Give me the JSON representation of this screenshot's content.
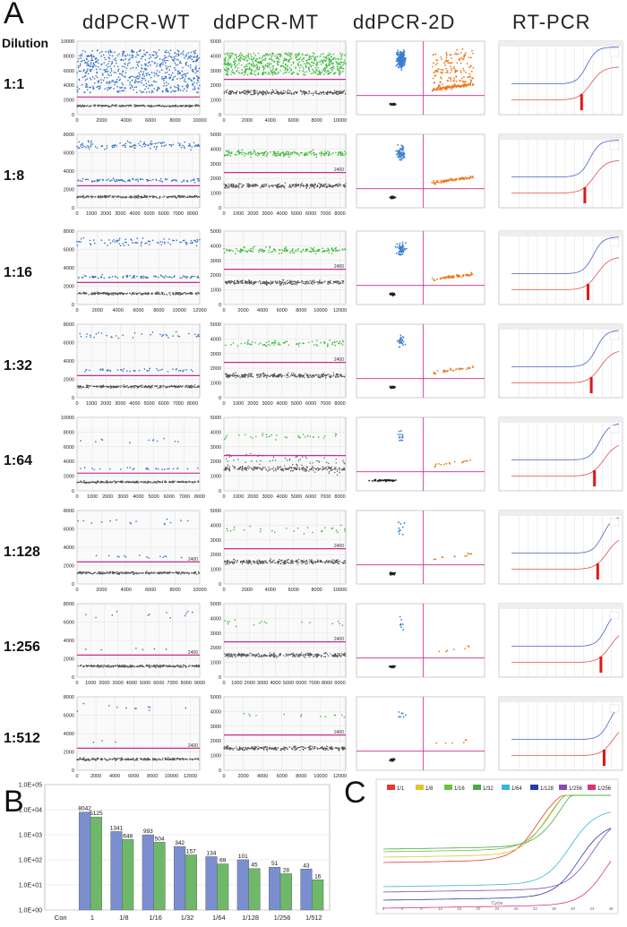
{
  "panel_a": {
    "letter": "A",
    "dilution_header": "Dilution",
    "column_titles": [
      "ddPCR-WT",
      "ddPCR-MT",
      "ddPCR-2D",
      "RT-PCR"
    ],
    "rows": [
      {
        "dilution": "1:1",
        "wt_xmax": 10000,
        "wt_ymax": 10000,
        "wt_yticks": [
          0,
          2000,
          4000,
          6000,
          8000,
          10000
        ],
        "wt_xticks": [
          0,
          2000,
          4000,
          6000,
          8000,
          10000
        ],
        "mt_xticks": [
          0,
          2000,
          4000,
          6000,
          8000,
          10000
        ],
        "mt_thresh_label": "",
        "wt_thresh_label": ""
      },
      {
        "dilution": "1:8",
        "wt_xmax": 8500,
        "wt_ymax": 8000,
        "wt_yticks": [
          0,
          2000,
          4000,
          6000,
          8000
        ],
        "wt_xticks": [
          0,
          1000,
          2000,
          3000,
          4000,
          5000,
          6000,
          7000,
          8000
        ],
        "mt_xticks": [
          0,
          1000,
          2000,
          3000,
          4000,
          5000,
          6000,
          7000,
          8000
        ],
        "mt_thresh_label": "2400",
        "wt_thresh_label": ""
      },
      {
        "dilution": "1:16",
        "wt_xmax": 12000,
        "wt_ymax": 8000,
        "wt_yticks": [
          0,
          2000,
          4000,
          6000,
          8000
        ],
        "wt_xticks": [
          0,
          2000,
          4000,
          6000,
          8000,
          10000,
          12000
        ],
        "mt_xticks": [
          0,
          2000,
          4000,
          6000,
          8000,
          10000,
          12000
        ],
        "mt_thresh_label": "2400",
        "wt_thresh_label": ""
      },
      {
        "dilution": "1:32",
        "wt_xmax": 8500,
        "wt_ymax": 8000,
        "wt_yticks": [
          0,
          2000,
          4000,
          6000,
          8000
        ],
        "wt_xticks": [
          0,
          1000,
          2000,
          3000,
          4000,
          5000,
          6000,
          7000,
          8000
        ],
        "mt_xticks": [
          0,
          1000,
          2000,
          3000,
          4000,
          5000,
          6000,
          7000,
          8000
        ],
        "mt_thresh_label": "2400",
        "wt_thresh_label": ""
      },
      {
        "dilution": "1:64",
        "wt_xmax": 8000,
        "wt_ymax": 10000,
        "wt_yticks": [
          0,
          2000,
          4000,
          6000,
          8000,
          10000
        ],
        "wt_xticks": [
          0,
          1000,
          2000,
          3000,
          4000,
          5000,
          6000,
          7000,
          8000
        ],
        "mt_xticks": [
          0,
          1000,
          2000,
          3000,
          4000,
          5000,
          6000,
          7000,
          8000
        ],
        "mt_thresh_label": "",
        "wt_thresh_label": ""
      },
      {
        "dilution": "1:128",
        "wt_xmax": 10000,
        "wt_ymax": 8000,
        "wt_yticks": [
          0,
          2000,
          4000,
          6000,
          8000
        ],
        "wt_xticks": [
          0,
          2000,
          4000,
          6000,
          8000,
          10000
        ],
        "mt_xticks": [
          0,
          2000,
          4000,
          6000,
          8000,
          10000
        ],
        "mt_thresh_label": "2400",
        "wt_thresh_label": "2400"
      },
      {
        "dilution": "1:256",
        "wt_xmax": 9000,
        "wt_ymax": 8000,
        "wt_yticks": [
          0,
          2000,
          4000,
          6000,
          8000
        ],
        "wt_xticks": [
          0,
          1000,
          2000,
          3000,
          4000,
          5000,
          6000,
          7000,
          8000,
          9000
        ],
        "mt_xticks": [
          0,
          1000,
          2000,
          3000,
          4000,
          5000,
          6000,
          7000,
          8000,
          9000
        ],
        "mt_thresh_label": "2400",
        "wt_thresh_label": "2400"
      },
      {
        "dilution": "1:512",
        "wt_xmax": 13000,
        "wt_ymax": 8000,
        "wt_yticks": [
          0,
          2000,
          4000,
          6000,
          8000
        ],
        "wt_xticks": [
          0,
          2000,
          4000,
          6000,
          8000,
          10000,
          12000
        ],
        "mt_xticks": [
          0,
          2000,
          4000,
          6000,
          8000,
          10000,
          12000
        ],
        "mt_thresh_label": "2400",
        "wt_thresh_label": "2400"
      }
    ],
    "mt_yticks": [
      0,
      1000,
      2000,
      3000,
      4000,
      5000
    ],
    "colors": {
      "wt": "#2f6fc4",
      "mt": "#3cb83c",
      "negative": "#555555",
      "threshold": "#cc2a8c",
      "orange": "#e87a20"
    }
  },
  "chart_data": [
    {
      "type": "bar",
      "title": "",
      "categories": [
        "1",
        "1/8",
        "1/16",
        "1/32",
        "1/64",
        "1/128",
        "1/256",
        "1/512"
      ],
      "series": [
        {
          "name": "ddPCR-WT",
          "color": "#7b8fd0",
          "values": [
            8042,
            1341,
            993,
            342,
            134,
            101,
            51,
            43
          ]
        },
        {
          "name": "ddPCR-MT",
          "color": "#6fb86a",
          "values": [
            5125,
            648,
            504,
            157,
            69,
            45,
            28,
            16
          ]
        }
      ],
      "extra_x_label": "Con",
      "ylabel": "",
      "yscale": "log",
      "ylim": [
        1,
        100000
      ],
      "yticks": [
        "1.0E+00",
        "1.0E+01",
        "1.0E+02",
        "1.0E+03",
        "1.0E+04",
        "1.0E+05"
      ]
    },
    {
      "type": "line",
      "title": "",
      "xlabel": "Cycle",
      "legend": [
        "1/1",
        "1/8",
        "1/16",
        "1/32",
        "1/64",
        "1/128",
        "1/256",
        "1/256"
      ],
      "legend_colors": [
        "#e03a3a",
        "#e0c430",
        "#6ac040",
        "#4aa84a",
        "#38b8d8",
        "#2a3aa8",
        "#8a4ab8",
        "#e0307a"
      ]
    }
  ],
  "panel_b": {
    "letter": "B"
  },
  "panel_c": {
    "letter": "C",
    "xlabel": "Cycle"
  }
}
